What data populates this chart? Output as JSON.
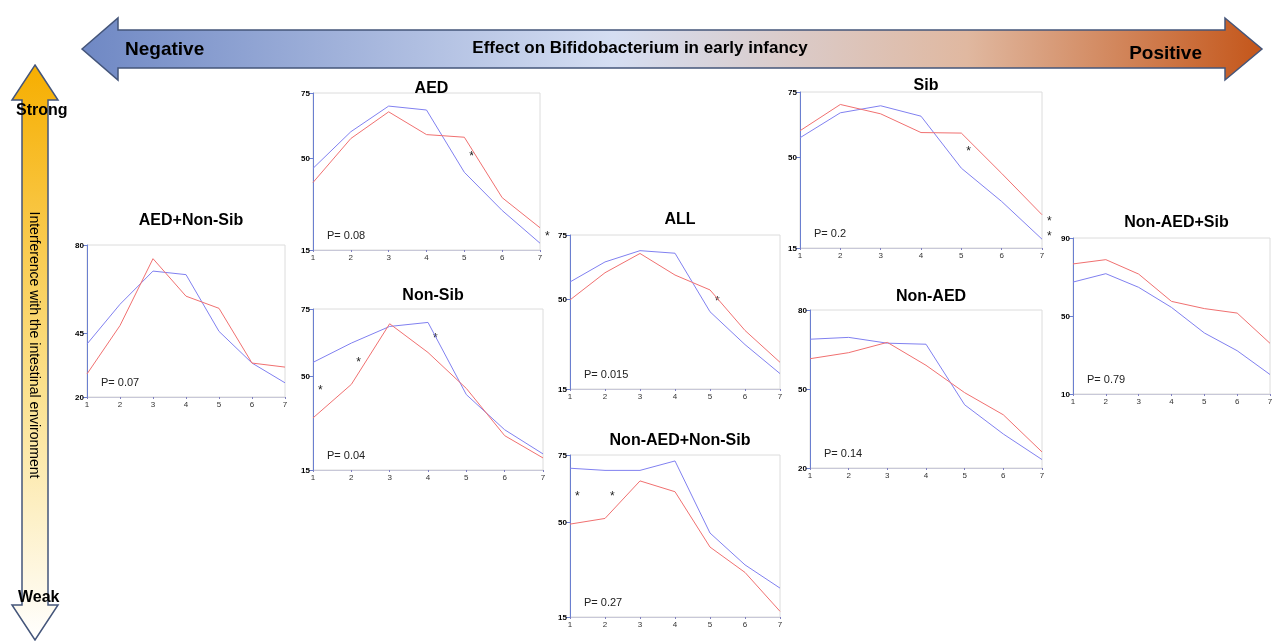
{
  "chart_data": [
    {
      "type": "line",
      "title": "AED+Non-Sib",
      "categories": [
        "1",
        "2",
        "3",
        "4",
        "5",
        "6",
        "7"
      ],
      "ylim": [
        20,
        80
      ],
      "yticks": [
        20,
        45,
        80
      ],
      "series": [
        {
          "color": "#8080f0",
          "values": [
            40.9,
            56.6,
            69.7,
            68.3,
            45.9,
            33.4,
            25.6
          ]
        },
        {
          "color": "#f07070",
          "values": [
            29.1,
            48.2,
            74.6,
            59.8,
            55.0,
            33.4,
            31.8
          ]
        }
      ],
      "annotations": [
        "P= 0.07"
      ]
    },
    {
      "type": "line",
      "title": "AED",
      "categories": [
        "1",
        "2",
        "3",
        "4",
        "5",
        "6",
        "7"
      ],
      "ylim": [
        15,
        75
      ],
      "yticks": [
        15,
        50,
        75
      ],
      "series": [
        {
          "color": "#8080f0",
          "values": [
            46.2,
            60.2,
            70.0,
            68.5,
            44.7,
            30.1,
            17.6
          ]
        },
        {
          "color": "#f07070",
          "values": [
            40.8,
            57.6,
            67.8,
            59.1,
            58.1,
            35.0,
            23.5
          ]
        }
      ],
      "annotations": [
        "P= 0.08",
        "*",
        "*"
      ]
    },
    {
      "type": "line",
      "title": "Non-Sib",
      "categories": [
        "1",
        "2",
        "3",
        "4",
        "5",
        "6",
        "7"
      ],
      "ylim": [
        15,
        75
      ],
      "yticks": [
        15,
        50,
        75
      ],
      "series": [
        {
          "color": "#8080f0",
          "values": [
            55.1,
            62.3,
            68.5,
            70.0,
            43.1,
            30.0,
            21.0
          ]
        },
        {
          "color": "#f07070",
          "values": [
            34.4,
            46.9,
            69.5,
            58.8,
            45.4,
            27.8,
            19.5
          ]
        }
      ],
      "annotations": [
        "P= 0.04",
        "*",
        "*",
        "*"
      ]
    },
    {
      "type": "line",
      "title": "ALL",
      "categories": [
        "1",
        "2",
        "3",
        "4",
        "5",
        "6",
        "7"
      ],
      "ylim": [
        15,
        75
      ],
      "yticks": [
        15,
        50,
        75
      ],
      "series": [
        {
          "color": "#8080f0",
          "values": [
            56.7,
            64.5,
            68.9,
            67.9,
            45.1,
            32.3,
            21.0
          ]
        },
        {
          "color": "#f07070",
          "values": [
            49.7,
            60.3,
            67.8,
            59.4,
            53.6,
            37.8,
            25.4
          ]
        }
      ],
      "annotations": [
        "P= 0.015",
        "*"
      ]
    },
    {
      "type": "line",
      "title": "Non-AED+Non-Sib",
      "categories": [
        "1",
        "2",
        "3",
        "4",
        "5",
        "6",
        "7"
      ],
      "ylim": [
        15,
        75
      ],
      "yticks": [
        15,
        50,
        75
      ],
      "series": [
        {
          "color": "#8080f0",
          "values": [
            70.1,
            69.3,
            69.3,
            72.8,
            46.1,
            34.3,
            25.7
          ]
        },
        {
          "color": "#f07070",
          "values": [
            49.4,
            51.5,
            65.4,
            61.4,
            40.9,
            31.5,
            17.1
          ]
        }
      ],
      "annotations": [
        "P= 0.27",
        "*",
        "*"
      ]
    },
    {
      "type": "line",
      "title": "Sib",
      "categories": [
        "1",
        "2",
        "3",
        "4",
        "5",
        "6",
        "7"
      ],
      "ylim": [
        15,
        75
      ],
      "yticks": [
        15,
        50,
        75
      ],
      "series": [
        {
          "color": "#8080f0",
          "values": [
            57.4,
            67.0,
            69.7,
            65.7,
            45.7,
            32.9,
            18.4
          ]
        },
        {
          "color": "#f07070",
          "values": [
            60.1,
            70.2,
            66.6,
            59.4,
            59.2,
            43.7,
            27.8
          ]
        }
      ],
      "annotations": [
        "P= 0.2",
        "*",
        "*",
        "*"
      ]
    },
    {
      "type": "line",
      "title": "Non-AED",
      "categories": [
        "1",
        "2",
        "3",
        "4",
        "5",
        "6",
        "7"
      ],
      "ylim": [
        20,
        80
      ],
      "yticks": [
        20,
        50,
        80
      ],
      "series": [
        {
          "color": "#8080f0",
          "values": [
            68.9,
            69.6,
            67.4,
            67.0,
            44.0,
            32.9,
            23.2
          ]
        },
        {
          "color": "#f07070",
          "values": [
            61.5,
            63.8,
            67.7,
            59.0,
            48.6,
            40.2,
            26.1
          ]
        }
      ],
      "annotations": [
        "P= 0.14"
      ]
    },
    {
      "type": "line",
      "title": "Non-AED+Sib",
      "categories": [
        "1",
        "2",
        "3",
        "4",
        "5",
        "6",
        "7"
      ],
      "ylim": [
        10,
        90
      ],
      "yticks": [
        10,
        50,
        90
      ],
      "series": [
        {
          "color": "#8080f0",
          "values": [
            67.4,
            71.7,
            64.7,
            54.4,
            41.3,
            32.2,
            20
          ]
        },
        {
          "color": "#f07070",
          "values": [
            76.7,
            78.9,
            71.5,
            57.5,
            53.8,
            51.5,
            36
          ]
        }
      ],
      "annotations": [
        "P= 0.79"
      ]
    },
    {
      "type": "other",
      "annotations": [
        "Negative",
        "Effect on Bifidobacterium in early infancy",
        "Positive",
        "Strong",
        "Weak",
        "Interference with the intestinal environment"
      ]
    }
  ]
}
